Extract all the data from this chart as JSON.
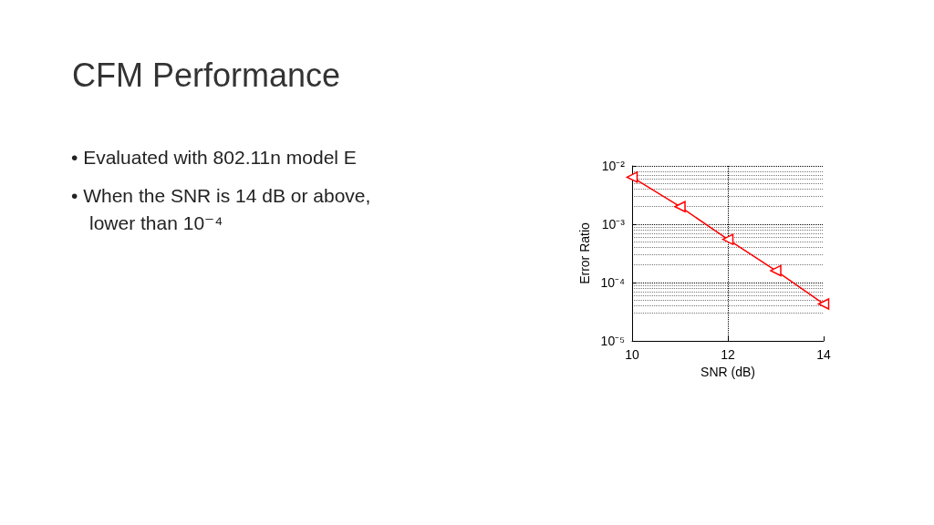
{
  "chart_data": {
    "type": "line",
    "title": "CFM Performance",
    "annotations": [
      "• Evaluated with 802.11n model E",
      "• When the SNR is 14 dB or above, lower than 10⁻⁴"
    ],
    "xlabel": "SNR (dB)",
    "ylabel": "Error Ratio",
    "x": [
      10,
      11,
      12,
      13,
      14
    ],
    "series": [
      {
        "color": "#ff0000",
        "values": [
          0.0064,
          0.002,
          0.00055,
          0.00016,
          4.3e-05
        ]
      }
    ],
    "xlim": [
      10,
      14
    ],
    "xticks": [
      10,
      12,
      14
    ],
    "ylim": [
      1e-05,
      0.01
    ],
    "yticks": [
      {
        "value": 1e-05,
        "label": "10⁻⁵"
      },
      {
        "value": 0.0001,
        "label": "10⁻⁴"
      },
      {
        "value": 0.001,
        "label": "10⁻³"
      },
      {
        "value": 0.01,
        "label": "10⁻²"
      }
    ],
    "log": "y",
    "grid": true,
    "marker": "triangle",
    "line_style": "solid"
  }
}
